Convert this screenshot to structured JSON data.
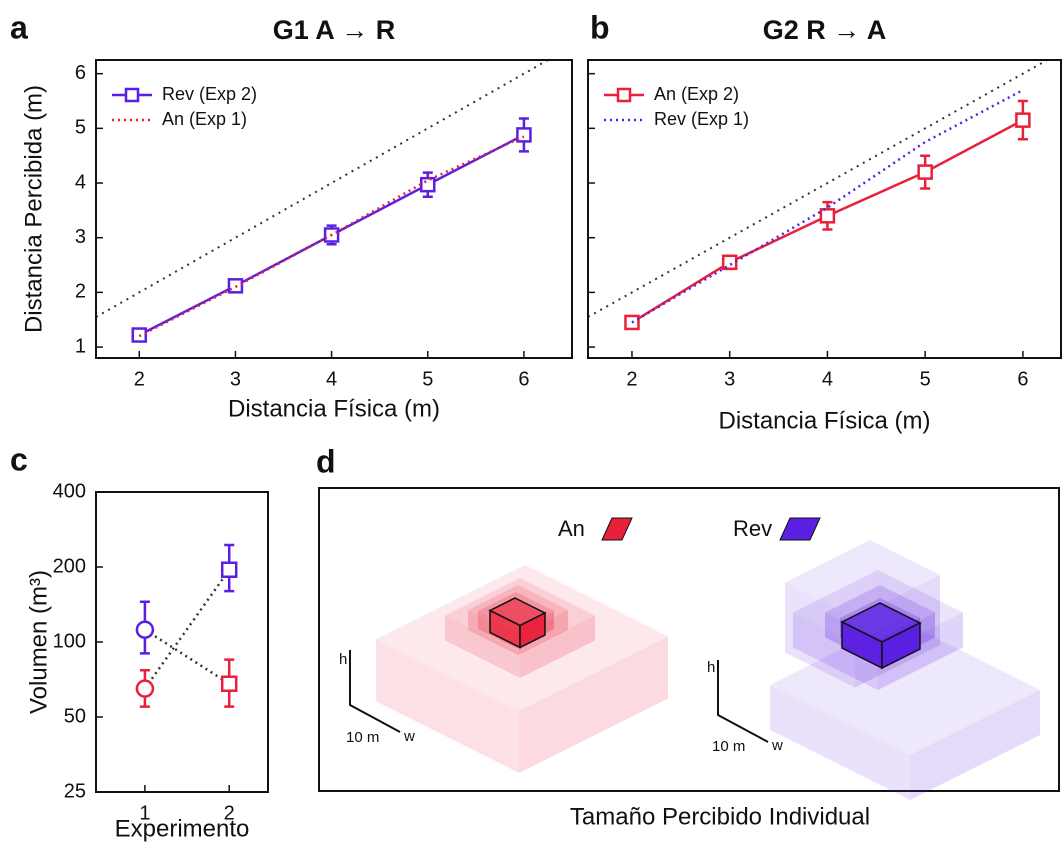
{
  "chart_data": [
    {
      "type": "line",
      "panel": "a",
      "title": "G1 A → R",
      "xlabel": "Distancia Física (m)",
      "ylabel": "Distancia Percibida (m)",
      "x": [
        2,
        3,
        4,
        5,
        6
      ],
      "xlim": [
        1.55,
        6.5
      ],
      "xticks": [
        2,
        3,
        4,
        5,
        6
      ],
      "ylim": [
        0.8,
        6.25
      ],
      "yticks": [
        1,
        2,
        3,
        4,
        5,
        6
      ],
      "ytick_labels": true,
      "identity_line": true,
      "legend": "upper left",
      "series": [
        {
          "name": "Rev (Exp 2)",
          "color": "#5a1fe0",
          "style": "solid",
          "marker": "square",
          "values": [
            1.22,
            2.12,
            3.05,
            3.97,
            4.88
          ],
          "errors": [
            0.08,
            0.08,
            0.17,
            0.22,
            0.3
          ]
        },
        {
          "name": "An (Exp 1)",
          "color": "#e8203a",
          "style": "dotted",
          "values": [
            1.2,
            2.1,
            3.05,
            4.05,
            4.85
          ]
        }
      ]
    },
    {
      "type": "line",
      "panel": "b",
      "title": "G2 R → A",
      "xlabel": "Distancia Física (m)",
      "x": [
        2,
        3,
        4,
        5,
        6
      ],
      "xlim": [
        1.55,
        6.39
      ],
      "xticks": [
        2,
        3,
        4,
        5,
        6
      ],
      "ylim": [
        0.8,
        6.25
      ],
      "yticks": [
        1,
        2,
        3,
        4,
        5,
        6
      ],
      "ytick_labels": false,
      "identity_line": true,
      "legend": "upper left",
      "series": [
        {
          "name": "An (Exp 2)",
          "color": "#e8203a",
          "style": "solid",
          "marker": "square",
          "values": [
            1.45,
            2.55,
            3.4,
            4.2,
            5.15
          ],
          "errors": [
            0.07,
            0.12,
            0.25,
            0.3,
            0.35
          ]
        },
        {
          "name": "Rev (Exp 1)",
          "color": "#5a1fe0",
          "style": "dotted",
          "values": [
            1.45,
            2.5,
            3.55,
            4.75,
            5.7
          ]
        }
      ]
    },
    {
      "type": "line",
      "panel": "c",
      "xlabel": "Experimento",
      "ylabel": "Volumen (m³)",
      "x": [
        1,
        2
      ],
      "xlim": [
        0.42,
        2.46
      ],
      "xticks": [
        1,
        2
      ],
      "log_y": true,
      "ylim": [
        25,
        400
      ],
      "yticks": [
        25,
        50,
        100,
        200,
        400
      ],
      "ytick_labels": true,
      "line_color": "#333333",
      "line_style": "dotted",
      "series": [
        {
          "colors": [
            "#5a1fe0",
            "#e8203a"
          ],
          "markers": [
            "circle",
            "square"
          ],
          "values": [
            112,
            68
          ],
          "lower": [
            90,
            55
          ],
          "upper": [
            145,
            85
          ]
        },
        {
          "colors": [
            "#e8203a",
            "#5a1fe0"
          ],
          "markers": [
            "circle",
            "square"
          ],
          "values": [
            65,
            195
          ],
          "lower": [
            55,
            160
          ],
          "upper": [
            77,
            245
          ]
        }
      ]
    }
  ],
  "panel_d": {
    "panel": "d",
    "title": "Tamaño Percibido Individual",
    "legend": [
      "An",
      "Rev"
    ],
    "axis_h": "h",
    "axis_w": "w",
    "scale": "10 m"
  }
}
